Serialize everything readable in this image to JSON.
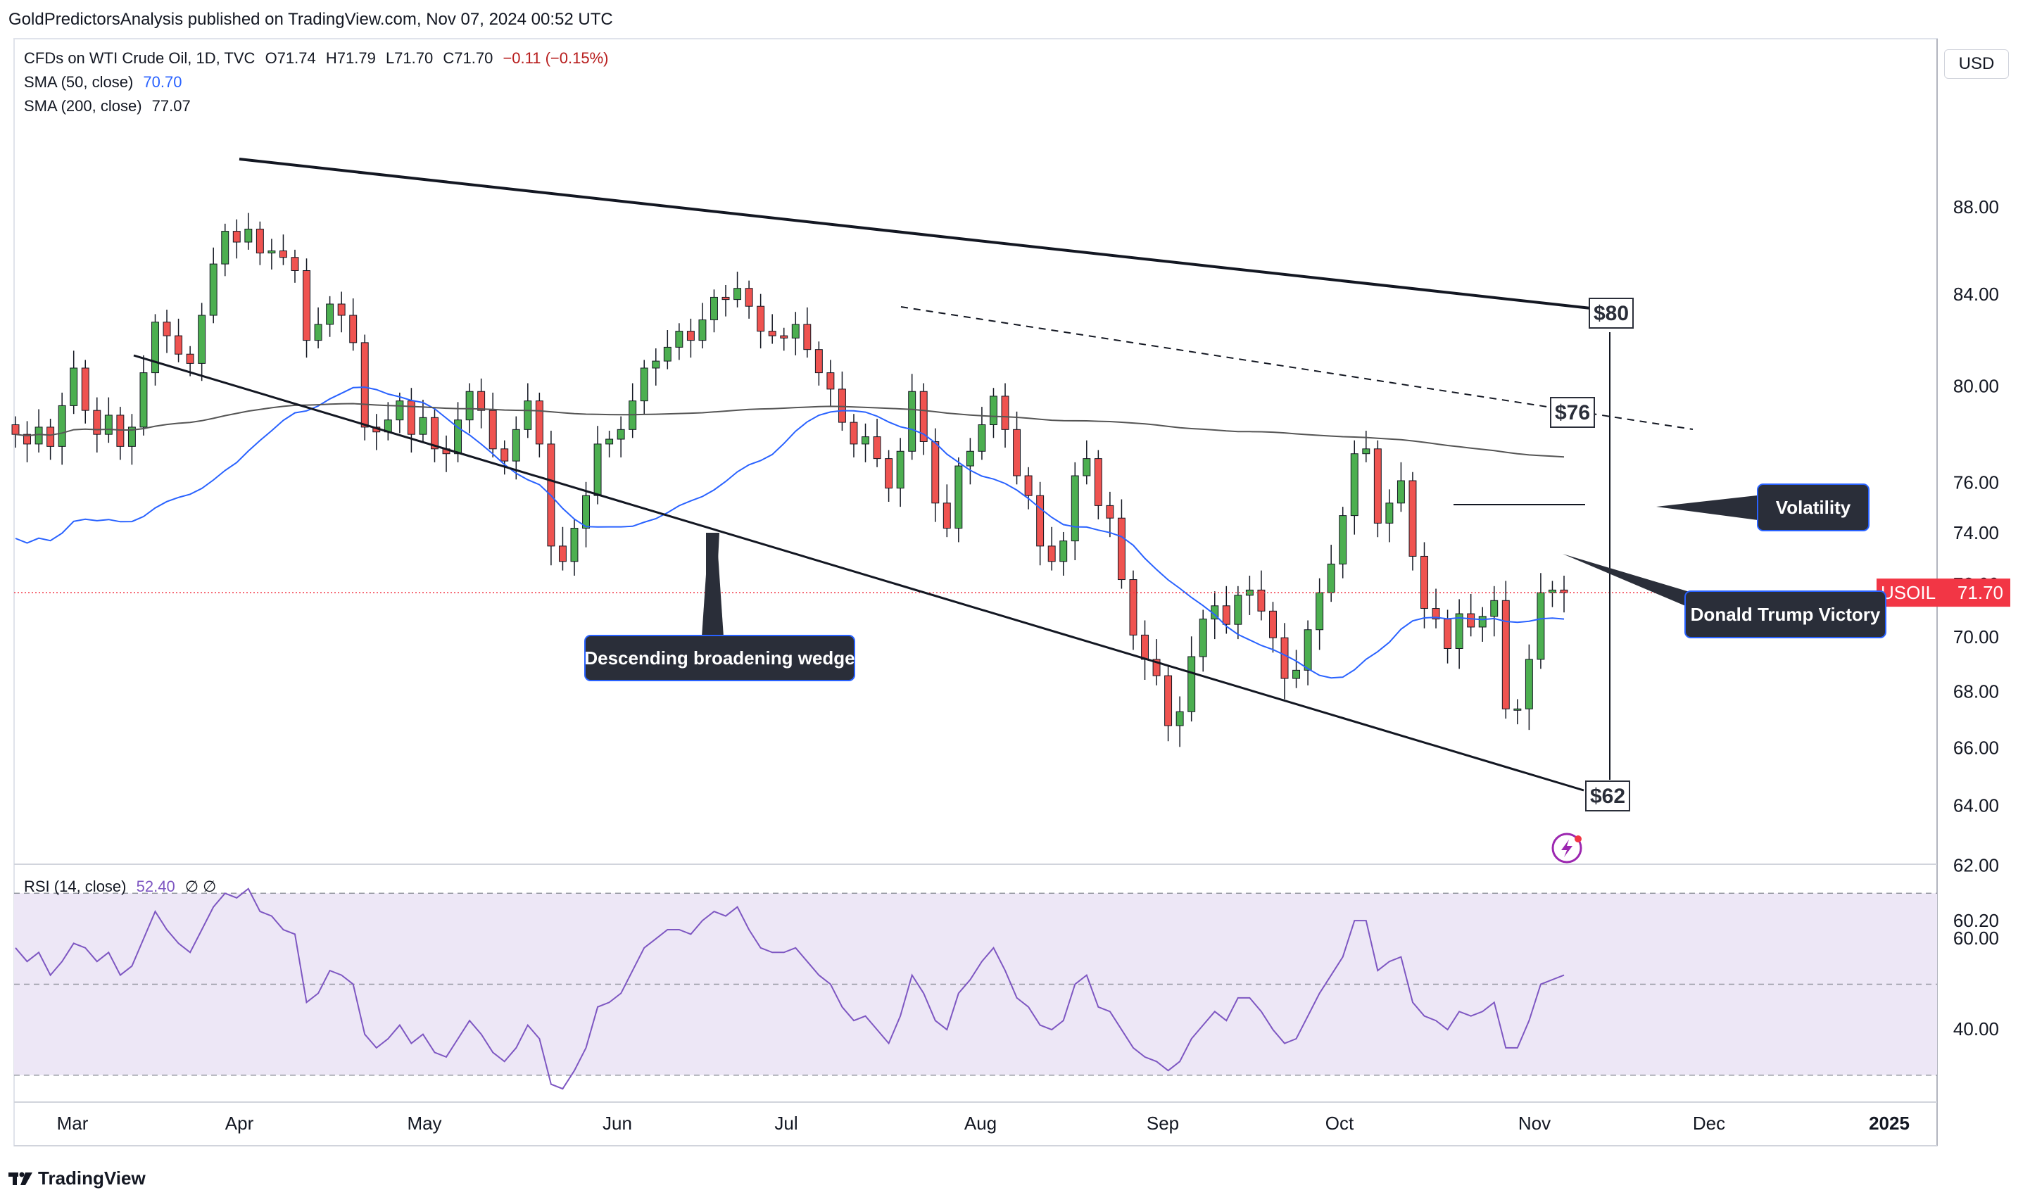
{
  "header": {
    "publisher_line": "GoldPredictorsAnalysis published on TradingView.com, Nov 07, 2024 00:52 UTC"
  },
  "legend": {
    "symbol": "CFDs on WTI Crude Oil, 1D, TVC",
    "o": "O71.74",
    "h": "H71.79",
    "l": "L71.70",
    "c": "C71.70",
    "chg": "−0.11 (−0.15%)",
    "sma50_label": "SMA (50, close)",
    "sma50_value": "70.70",
    "sma200_label": "SMA (200, close)",
    "sma200_value": "77.07",
    "rsi_label": "RSI (14, close)",
    "rsi_value": "52.40",
    "rsi_extra": "∅  ∅"
  },
  "currency_button": "USD",
  "price_tag": {
    "symbol": "USOIL",
    "value": "71.70"
  },
  "annotations": {
    "wedge": "Descending broadening wedge",
    "volatility": "Volatility",
    "trump": "Donald Trump Victory",
    "target_80": "$80",
    "target_76": "$76",
    "target_62": "$62"
  },
  "footer": {
    "brand": "TradingView"
  },
  "colors": {
    "up": "#26a69a",
    "up_fill": "#4caf50",
    "down": "#ef5350",
    "sma50": "#2962ff",
    "sma200": "#555555",
    "rsi": "#7e57c2",
    "rsi_band": "#ede7f6",
    "label_bg": "#2a2e39"
  },
  "chart_data": {
    "type": "candlestick",
    "y_axis": {
      "ticks": [
        "88.00",
        "84.00",
        "80.00",
        "76.00",
        "74.00",
        "72.00",
        "70.00",
        "68.00",
        "66.00",
        "64.00",
        "62.00",
        "60.20"
      ],
      "log": true
    },
    "x_axis": {
      "ticks": [
        "Mar",
        "Apr",
        "May",
        "Jun",
        "Jul",
        "Aug",
        "Sep",
        "Oct",
        "Nov",
        "Dec",
        "2025"
      ]
    },
    "rsi_axis": {
      "ticks": [
        "60.00",
        "40.00"
      ],
      "ylim": [
        25,
        75
      ],
      "bands": [
        30,
        50,
        70
      ]
    },
    "close_series": [
      78.0,
      77.6,
      78.3,
      77.5,
      79.2,
      80.8,
      79.0,
      78.0,
      78.8,
      77.5,
      78.3,
      80.6,
      82.8,
      82.2,
      81.4,
      81.0,
      83.1,
      85.4,
      86.9,
      86.4,
      87.0,
      85.9,
      86.0,
      85.7,
      85.1,
      82.0,
      82.7,
      83.6,
      83.1,
      81.9,
      78.3,
      78.1,
      78.6,
      79.4,
      78.0,
      78.7,
      77.4,
      77.2,
      78.6,
      79.8,
      79.0,
      77.4,
      76.9,
      78.2,
      79.4,
      77.6,
      73.5,
      72.9,
      74.2,
      75.5,
      77.6,
      77.8,
      78.2,
      79.4,
      80.8,
      81.1,
      81.7,
      82.4,
      82.0,
      82.9,
      83.9,
      83.8,
      84.3,
      83.5,
      82.4,
      82.2,
      82.1,
      82.7,
      81.6,
      80.6,
      79.9,
      78.5,
      77.6,
      77.9,
      77.0,
      75.8,
      77.3,
      79.8,
      77.7,
      75.2,
      74.2,
      76.7,
      77.3,
      78.4,
      79.6,
      78.2,
      76.3,
      75.5,
      73.5,
      72.9,
      73.7,
      76.3,
      77.0,
      75.1,
      74.6,
      72.2,
      70.1,
      69.2,
      68.6,
      66.8,
      67.3,
      69.3,
      70.7,
      71.2,
      70.5,
      71.6,
      71.8,
      71.0,
      70.0,
      68.5,
      68.8,
      70.3,
      71.7,
      72.8,
      74.7,
      77.2,
      77.4,
      74.4,
      75.2,
      76.1,
      73.1,
      71.1,
      70.7,
      69.6,
      70.9,
      70.4,
      70.8,
      71.4,
      67.4,
      67.4,
      69.2,
      71.7,
      71.8,
      71.7
    ],
    "sma50_range": {
      "start": 73.8,
      "end": 70.7
    },
    "sma200_range": {
      "start": 78.0,
      "end": 77.07
    },
    "rsi_series": [
      58,
      55,
      57,
      52,
      55,
      59,
      58,
      55,
      57,
      52,
      54,
      60,
      66,
      62,
      59,
      57,
      62,
      67,
      70,
      69,
      71,
      66,
      65,
      62,
      61,
      46,
      48,
      53,
      52,
      50,
      39,
      36,
      38,
      41,
      37,
      39,
      35,
      34,
      38,
      42,
      39,
      35,
      33,
      36,
      41,
      38,
      28,
      27,
      31,
      36,
      45,
      46,
      48,
      53,
      58,
      60,
      62,
      62,
      61,
      64,
      66,
      65,
      67,
      62,
      58,
      57,
      57,
      58,
      55,
      52,
      50,
      45,
      42,
      43,
      40,
      37,
      43,
      52,
      48,
      42,
      40,
      48,
      51,
      55,
      58,
      53,
      47,
      45,
      41,
      40,
      42,
      50,
      52,
      45,
      44,
      40,
      36,
      34,
      33,
      31,
      33,
      38,
      41,
      44,
      42,
      47,
      47,
      44,
      40,
      37,
      38,
      43,
      48,
      52,
      56,
      64,
      64,
      53,
      55,
      56,
      46,
      43,
      42,
      40,
      44,
      43,
      44,
      46,
      36,
      36,
      42,
      50,
      51,
      52
    ]
  }
}
